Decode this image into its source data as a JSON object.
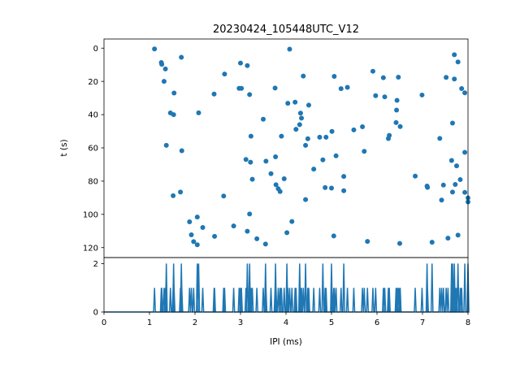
{
  "chart_data": [
    {
      "type": "scatter",
      "title": "20230424_105448UTC_V12",
      "xlabel": "",
      "ylabel": "t (s)",
      "xlim": [
        0,
        8
      ],
      "ylim": [
        126,
        -5.5
      ],
      "y_inverted": true,
      "ytick_values": [
        0,
        20,
        40,
        60,
        80,
        100,
        120
      ],
      "ytick_labels": [
        "0",
        "20",
        "40",
        "60",
        "80",
        "100",
        "120"
      ],
      "color": "#1f77b4",
      "points": [
        [
          1.11,
          0.5
        ],
        [
          1.26,
          8.7
        ],
        [
          1.27,
          9.7
        ],
        [
          1.32,
          20.0
        ],
        [
          1.35,
          12.5
        ],
        [
          1.37,
          58.5
        ],
        [
          1.46,
          39.0
        ],
        [
          1.52,
          88.8
        ],
        [
          1.53,
          40.0
        ],
        [
          1.54,
          27.0
        ],
        [
          1.68,
          86.6
        ],
        [
          1.7,
          5.5
        ],
        [
          1.71,
          61.7
        ],
        [
          1.88,
          104.5
        ],
        [
          1.92,
          112.3
        ],
        [
          1.97,
          116.4
        ],
        [
          2.05,
          118.3
        ],
        [
          2.05,
          101.6
        ],
        [
          2.08,
          38.9
        ],
        [
          2.17,
          107.9
        ],
        [
          2.42,
          27.6
        ],
        [
          2.43,
          113.2
        ],
        [
          2.63,
          89.0
        ],
        [
          2.65,
          15.6
        ],
        [
          2.85,
          107.0
        ],
        [
          2.97,
          24.2
        ],
        [
          3.0,
          9.0
        ],
        [
          3.02,
          24.2
        ],
        [
          3.12,
          67.0
        ],
        [
          3.15,
          110.2
        ],
        [
          3.15,
          10.5
        ],
        [
          3.2,
          27.9
        ],
        [
          3.2,
          99.8
        ],
        [
          3.22,
          68.6
        ],
        [
          3.23,
          53.0
        ],
        [
          3.26,
          78.9
        ],
        [
          3.36,
          114.7
        ],
        [
          3.5,
          42.8
        ],
        [
          3.55,
          117.9
        ],
        [
          3.56,
          68.0
        ],
        [
          3.67,
          75.5
        ],
        [
          3.76,
          24.0
        ],
        [
          3.77,
          65.4
        ],
        [
          3.78,
          82.2
        ],
        [
          3.83,
          84.6
        ],
        [
          3.87,
          86.3
        ],
        [
          3.9,
          53.0
        ],
        [
          3.96,
          78.6
        ],
        [
          4.02,
          111.0
        ],
        [
          4.04,
          33.2
        ],
        [
          4.08,
          0.6
        ],
        [
          4.13,
          104.3
        ],
        [
          4.2,
          32.5
        ],
        [
          4.22,
          48.8
        ],
        [
          4.3,
          46.0
        ],
        [
          4.32,
          39.1
        ],
        [
          4.34,
          42.1
        ],
        [
          4.38,
          16.8
        ],
        [
          4.43,
          91.1
        ],
        [
          4.43,
          58.5
        ],
        [
          4.48,
          54.5
        ],
        [
          4.5,
          34.3
        ],
        [
          4.61,
          72.8
        ],
        [
          4.74,
          53.6
        ],
        [
          4.81,
          67.2
        ],
        [
          4.86,
          83.9
        ],
        [
          4.88,
          53.6
        ],
        [
          5.0,
          84.2
        ],
        [
          5.01,
          50.1
        ],
        [
          5.05,
          113.0
        ],
        [
          5.06,
          17.0
        ],
        [
          5.1,
          64.8
        ],
        [
          5.21,
          24.4
        ],
        [
          5.27,
          85.8
        ],
        [
          5.27,
          77.2
        ],
        [
          5.35,
          23.6
        ],
        [
          5.49,
          49.2
        ],
        [
          5.68,
          47.3
        ],
        [
          5.72,
          62.1
        ],
        [
          5.79,
          116.3
        ],
        [
          5.91,
          13.9
        ],
        [
          5.97,
          28.6
        ],
        [
          6.14,
          17.8
        ],
        [
          6.17,
          29.3
        ],
        [
          6.25,
          54.4
        ],
        [
          6.27,
          52.5
        ],
        [
          6.42,
          44.8
        ],
        [
          6.43,
          37.3
        ],
        [
          6.44,
          31.4
        ],
        [
          6.47,
          17.5
        ],
        [
          6.5,
          117.5
        ],
        [
          6.51,
          47.2
        ],
        [
          6.84,
          77.0
        ],
        [
          6.99,
          28.2
        ],
        [
          7.1,
          83.0
        ],
        [
          7.11,
          83.8
        ],
        [
          7.21,
          116.8
        ],
        [
          7.38,
          54.3
        ],
        [
          7.42,
          91.4
        ],
        [
          7.46,
          82.4
        ],
        [
          7.52,
          17.6
        ],
        [
          7.56,
          114.3
        ],
        [
          7.64,
          67.6
        ],
        [
          7.66,
          45.1
        ],
        [
          7.66,
          86.6
        ],
        [
          7.7,
          18.6
        ],
        [
          7.7,
          4.0
        ],
        [
          7.72,
          82.0
        ],
        [
          7.75,
          70.8
        ],
        [
          7.78,
          8.3
        ],
        [
          7.78,
          112.5
        ],
        [
          7.83,
          79.1
        ],
        [
          7.86,
          24.3
        ],
        [
          7.93,
          62.7
        ],
        [
          7.93,
          26.9
        ],
        [
          7.93,
          86.8
        ],
        [
          8.0,
          92.5
        ],
        [
          8.0,
          90.1
        ]
      ]
    },
    {
      "type": "line",
      "title": "",
      "xlabel": "IPI (ms)",
      "ylabel": "",
      "xlim": [
        0,
        8
      ],
      "ylim": [
        0,
        2.25
      ],
      "xtick_values": [
        0,
        1,
        2,
        3,
        4,
        5,
        6,
        7,
        8
      ],
      "xtick_labels": [
        "0",
        "1",
        "2",
        "3",
        "4",
        "5",
        "6",
        "7",
        "8"
      ],
      "ytick_values": [
        0,
        2
      ],
      "ytick_labels": [
        "0",
        "2"
      ],
      "color": "#1f77b4",
      "y_max_count": 2,
      "spikes": [
        [
          1.11,
          1
        ],
        [
          1.26,
          1
        ],
        [
          1.27,
          1
        ],
        [
          1.32,
          1
        ],
        [
          1.35,
          1
        ],
        [
          1.37,
          2
        ],
        [
          1.46,
          1
        ],
        [
          1.52,
          1
        ],
        [
          1.53,
          2
        ],
        [
          1.54,
          1
        ],
        [
          1.68,
          1
        ],
        [
          1.7,
          2
        ],
        [
          1.71,
          1
        ],
        [
          1.88,
          1
        ],
        [
          1.92,
          1
        ],
        [
          1.97,
          1
        ],
        [
          2.05,
          2
        ],
        [
          2.08,
          2
        ],
        [
          2.17,
          1
        ],
        [
          2.42,
          1
        ],
        [
          2.43,
          1
        ],
        [
          2.63,
          1
        ],
        [
          2.65,
          1
        ],
        [
          2.85,
          1
        ],
        [
          2.97,
          1
        ],
        [
          3.0,
          1
        ],
        [
          3.02,
          1
        ],
        [
          3.12,
          1
        ],
        [
          3.15,
          2
        ],
        [
          3.2,
          2
        ],
        [
          3.22,
          1
        ],
        [
          3.23,
          1
        ],
        [
          3.26,
          1
        ],
        [
          3.36,
          1
        ],
        [
          3.5,
          1
        ],
        [
          3.55,
          2
        ],
        [
          3.56,
          1
        ],
        [
          3.67,
          1
        ],
        [
          3.76,
          1
        ],
        [
          3.77,
          2
        ],
        [
          3.78,
          1
        ],
        [
          3.83,
          1
        ],
        [
          3.87,
          1
        ],
        [
          3.9,
          1
        ],
        [
          3.96,
          1
        ],
        [
          4.02,
          2
        ],
        [
          4.04,
          1
        ],
        [
          4.08,
          1
        ],
        [
          4.13,
          1
        ],
        [
          4.2,
          1
        ],
        [
          4.22,
          1
        ],
        [
          4.3,
          2
        ],
        [
          4.32,
          1
        ],
        [
          4.34,
          1
        ],
        [
          4.38,
          1
        ],
        [
          4.43,
          2
        ],
        [
          4.48,
          1
        ],
        [
          4.5,
          1
        ],
        [
          4.61,
          1
        ],
        [
          4.74,
          1
        ],
        [
          4.81,
          2
        ],
        [
          4.86,
          1
        ],
        [
          4.88,
          1
        ],
        [
          5.0,
          2
        ],
        [
          5.01,
          1
        ],
        [
          5.05,
          1
        ],
        [
          5.06,
          1
        ],
        [
          5.1,
          1
        ],
        [
          5.21,
          1
        ],
        [
          5.27,
          2
        ],
        [
          5.35,
          1
        ],
        [
          5.49,
          1
        ],
        [
          5.68,
          1
        ],
        [
          5.72,
          1
        ],
        [
          5.79,
          1
        ],
        [
          5.91,
          1
        ],
        [
          5.97,
          1
        ],
        [
          6.14,
          1
        ],
        [
          6.17,
          1
        ],
        [
          6.25,
          1
        ],
        [
          6.27,
          1
        ],
        [
          6.42,
          1
        ],
        [
          6.43,
          1
        ],
        [
          6.44,
          1
        ],
        [
          6.47,
          1
        ],
        [
          6.5,
          1
        ],
        [
          6.51,
          1
        ],
        [
          6.84,
          1
        ],
        [
          6.99,
          1
        ],
        [
          7.1,
          2
        ],
        [
          7.11,
          1
        ],
        [
          7.21,
          2
        ],
        [
          7.38,
          1
        ],
        [
          7.42,
          1
        ],
        [
          7.46,
          1
        ],
        [
          7.52,
          1
        ],
        [
          7.56,
          1
        ],
        [
          7.64,
          2
        ],
        [
          7.66,
          2
        ],
        [
          7.7,
          2
        ],
        [
          7.72,
          1
        ],
        [
          7.75,
          1
        ],
        [
          7.78,
          2
        ],
        [
          7.83,
          1
        ],
        [
          7.86,
          1
        ],
        [
          7.93,
          2
        ],
        [
          8.0,
          2
        ]
      ]
    }
  ]
}
